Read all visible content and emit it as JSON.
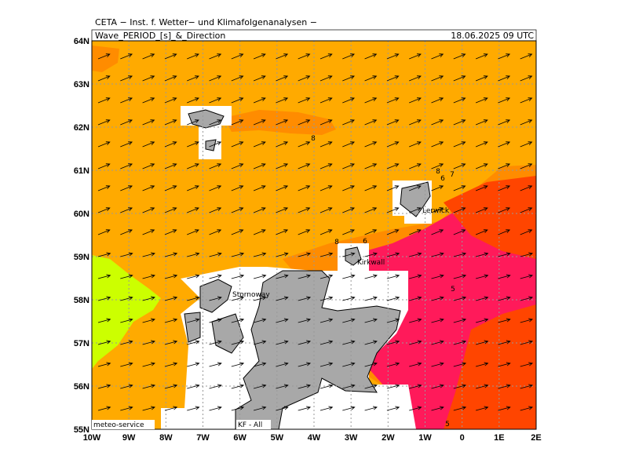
{
  "map": {
    "institute": "CETA − Inst. f. Wetter− und Klimafolgenanalysen −",
    "title": "Wave_PERIOD_[s]_&_Direction",
    "time": "18.06.2025 09 UTC",
    "xlim": [
      -10,
      2
    ],
    "ylim": [
      55,
      64
    ],
    "xticks": [
      {
        "value": -10,
        "label": "10W"
      },
      {
        "value": -9,
        "label": "9W"
      },
      {
        "value": -8,
        "label": "8W"
      },
      {
        "value": -7,
        "label": "7W"
      },
      {
        "value": -6,
        "label": "6W"
      },
      {
        "value": -5,
        "label": "5W"
      },
      {
        "value": -4,
        "label": "4W"
      },
      {
        "value": -3,
        "label": "3W"
      },
      {
        "value": -2,
        "label": "2W"
      },
      {
        "value": -1,
        "label": "1W"
      },
      0,
      {
        "value": 1,
        "label": "1E"
      },
      {
        "value": 2,
        "label": "2E"
      }
    ],
    "yticks": [
      {
        "value": 55,
        "label": "55N"
      },
      {
        "value": 56,
        "label": "56N"
      },
      {
        "value": 57,
        "label": "57N"
      },
      {
        "value": 58,
        "label": "58N"
      },
      {
        "value": 59,
        "label": "59N"
      },
      {
        "value": 60,
        "label": "60N"
      },
      {
        "value": 61,
        "label": "61N"
      },
      {
        "value": 62,
        "label": "62N"
      },
      {
        "value": 63,
        "label": "63N"
      },
      {
        "value": 64,
        "label": "64N"
      }
    ],
    "contour_labels": [
      "8",
      "8",
      "6",
      "8",
      "7",
      "6",
      "5",
      "5"
    ],
    "places": [
      "Lerwick",
      "Kirkwall",
      "Stornoway"
    ],
    "footer_left": "meteo-service",
    "footer_right": "KF - All"
  }
}
